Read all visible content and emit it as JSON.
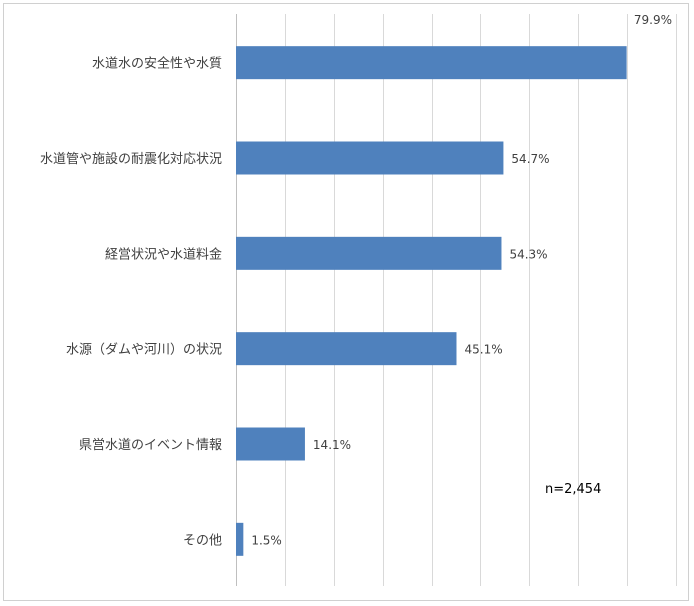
{
  "chart_data": {
    "type": "bar",
    "orientation": "horizontal",
    "categories": [
      "水道水の安全性や水質",
      "水道管や施設の耐震化対応状況",
      "経営状況や水道料金",
      "水源（ダムや河川）の状況",
      "県営水道のイベント情報",
      "その他"
    ],
    "values": [
      79.9,
      54.7,
      54.3,
      45.1,
      14.1,
      1.5
    ],
    "value_labels": [
      "79.9%",
      "54.7%",
      "54.3%",
      "45.1%",
      "14.1%",
      "1.5%"
    ],
    "xlim": [
      0,
      90
    ],
    "grid": true,
    "bar_color": "#4f81bd",
    "annotation": "n=2,454"
  }
}
